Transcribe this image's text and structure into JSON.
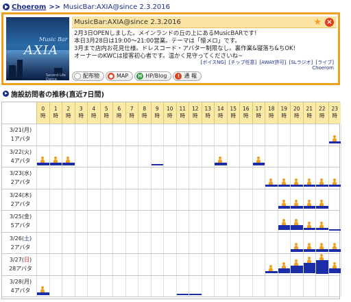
{
  "breadcrumb": {
    "root": "Choerom",
    "separator": ">>",
    "current": "MusicBar:AXIA@since 2.3.2016"
  },
  "venue": {
    "title": "MusicBar:AXIA@since 2.3.2016",
    "thumb_top": "Music Bar",
    "thumb_main": "AXIA",
    "thumb_sub": "Second Life Dance",
    "description": [
      "2月3日OPENしました。メインランドの丘の上にあるMusicBARです!",
      "本日3月28日は19:00～21:00営業。テーマは「懐メロ」です。",
      "3月まで店内お花見仕様。ドレスコード・アバター制限なし。裏作業&寝落ち&ちOK!",
      "オーナーのKWCは接客初心者です。温かく見守ってくださいね~"
    ],
    "tags": [
      "[ボイスNG]",
      "[チップ任意]",
      "[AWAY許可]",
      "[SLラジオ]",
      "[ライブ]"
    ],
    "tag_author": "Choerom",
    "buttons": [
      {
        "label": "配布物",
        "icon": "gift-icon",
        "color": "#ffffff"
      },
      {
        "label": "MAP",
        "icon": "map-pin-icon",
        "color": "#e04020"
      },
      {
        "label": "HP/Blog",
        "icon": "hp-icon",
        "color": "#2a9a3a"
      },
      {
        "label": "通 報",
        "icon": "alert-icon",
        "color": "#e04020"
      }
    ]
  },
  "section_title": "施設訪問者の推移(直近7日間)",
  "hour_suffix": "時",
  "hours": [
    "0",
    "1",
    "2",
    "3",
    "4",
    "5",
    "6",
    "7",
    "8",
    "9",
    "10",
    "11",
    "12",
    "13",
    "14",
    "15",
    "16",
    "17",
    "18",
    "19",
    "20",
    "21",
    "22",
    "23"
  ],
  "avatar_unit": "アバタ",
  "days": [
    {
      "date": "3/21",
      "weekday": "月",
      "type": "weekday",
      "count": "1",
      "bars": [
        0,
        0,
        0,
        0,
        0,
        0,
        0,
        0,
        0,
        0,
        0,
        0,
        0,
        0,
        0,
        0,
        0,
        0,
        0,
        0,
        0,
        0,
        0,
        1
      ]
    },
    {
      "date": "3/22",
      "weekday": "火",
      "type": "weekday",
      "count": "4",
      "bars": [
        1,
        1,
        1,
        0,
        0,
        0,
        0,
        0,
        0,
        0.1,
        0,
        0,
        0,
        0,
        1,
        0,
        0,
        1,
        0,
        0,
        0,
        0,
        0,
        0
      ]
    },
    {
      "date": "3/23",
      "weekday": "水",
      "type": "weekday",
      "count": "2",
      "bars": [
        0,
        0,
        0,
        0,
        0,
        0,
        0,
        0,
        0,
        0,
        0,
        0,
        0,
        0,
        0,
        0,
        0,
        0,
        1,
        1,
        1,
        1,
        1,
        1
      ]
    },
    {
      "date": "3/24",
      "weekday": "木",
      "type": "weekday",
      "count": "2",
      "bars": [
        0,
        0,
        0,
        0,
        0,
        0,
        0,
        0,
        0,
        0,
        0,
        0,
        0,
        0,
        0,
        0,
        0,
        0,
        0,
        1,
        1,
        1,
        1,
        0
      ]
    },
    {
      "date": "3/25",
      "weekday": "金",
      "type": "weekday",
      "count": "5",
      "bars": [
        0,
        0,
        0,
        0,
        0,
        0,
        0,
        0,
        0,
        0,
        0,
        0,
        0,
        0,
        0,
        0,
        0,
        0,
        0,
        2,
        2,
        1,
        1,
        0.1
      ]
    },
    {
      "date": "3/26",
      "weekday": "土",
      "type": "sat",
      "count": "2",
      "bars": [
        0,
        0,
        0,
        0,
        0,
        0,
        0,
        0,
        0,
        0,
        0,
        0,
        0,
        0,
        0,
        0,
        0,
        0,
        0,
        0,
        1,
        1,
        1,
        1
      ]
    },
    {
      "date": "3/27",
      "weekday": "日",
      "type": "sun",
      "count": "28",
      "bars": [
        0,
        0,
        0,
        0,
        0,
        0,
        0,
        0,
        0,
        0,
        0,
        0,
        0,
        0,
        0,
        0,
        0,
        0,
        1,
        2,
        3,
        4,
        5,
        2
      ]
    },
    {
      "date": "3/28",
      "weekday": "月",
      "type": "weekday",
      "count": "4",
      "bars": [
        1,
        0,
        0,
        0,
        0,
        0,
        0,
        0,
        0,
        0,
        0,
        0.1,
        0.1,
        0,
        0,
        0,
        0,
        0,
        0,
        0,
        0,
        0,
        0,
        0
      ]
    }
  ],
  "colors": {
    "accent": "#f0a020",
    "bar": "#1a2ca8",
    "header_bg": "#fbe9a8",
    "link": "#1a2c8a"
  }
}
